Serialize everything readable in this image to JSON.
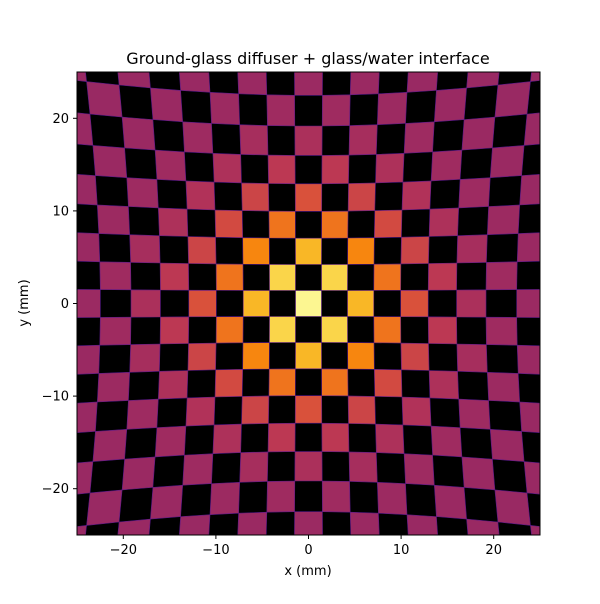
{
  "chart_data": {
    "type": "heatmap",
    "title": "Ground-glass diffuser + glass/water interface",
    "xlabel": "x (mm)",
    "ylabel": "y (mm)",
    "xlim": [
      -25,
      25
    ],
    "ylim": [
      -25,
      25
    ],
    "xticks": [
      -20,
      -10,
      0,
      10,
      20
    ],
    "yticks": [
      -20,
      -10,
      0,
      10,
      20
    ],
    "xtick_labels": [
      "−20",
      "−10",
      "0",
      "10",
      "20"
    ],
    "ytick_labels": [
      "−20",
      "−10",
      "0",
      "10",
      "20"
    ],
    "grid": false,
    "colormap": "inferno",
    "background_color": "#000000",
    "pattern": {
      "description_type": "checkerboard",
      "rows": 17,
      "cols": 17,
      "square_pitch_mm": 2.8,
      "pincushion_distortion": 0.00016,
      "brightness_center_mm": [
        0,
        0
      ],
      "brightness_falloff_mm": 11
    }
  }
}
